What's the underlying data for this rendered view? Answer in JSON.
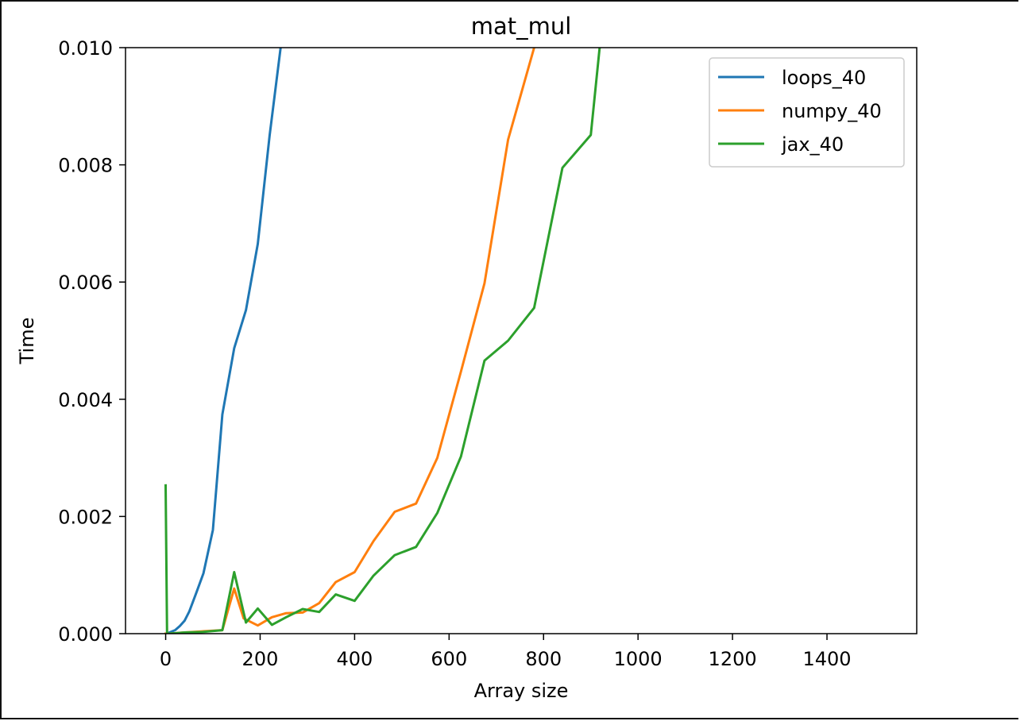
{
  "chart_data": {
    "type": "line",
    "title": "mat_mul",
    "xlabel": "Array size",
    "ylabel": "Time",
    "xlim": [
      -85,
      1590
    ],
    "ylim": [
      0,
      0.01
    ],
    "xticks": [
      0,
      200,
      400,
      600,
      800,
      1000,
      1200,
      1400
    ],
    "xtick_labels": [
      "0",
      "200",
      "400",
      "600",
      "800",
      "1000",
      "1200",
      "1400"
    ],
    "yticks": [
      0,
      0.002,
      0.004,
      0.006,
      0.008,
      0.01
    ],
    "ytick_labels": [
      "0.000",
      "0.002",
      "0.004",
      "0.006",
      "0.008",
      "0.010"
    ],
    "grid": false,
    "legend_position": "top-right",
    "series": [
      {
        "name": "loops_40",
        "color": "#1f77b4",
        "x": [
          0,
          8,
          20,
          30,
          40,
          50,
          65,
          80,
          100,
          120,
          145,
          170,
          195,
          220,
          245,
          250
        ],
        "y": [
          0.0,
          2e-05,
          6e-05,
          0.00013,
          0.00022,
          0.00038,
          0.0007,
          0.00103,
          0.00177,
          0.00374,
          0.00487,
          0.00552,
          0.00665,
          0.0085,
          0.0101,
          0.0104
        ]
      },
      {
        "name": "numpy_40",
        "color": "#ff7f0e",
        "x": [
          0,
          8,
          40,
          80,
          120,
          145,
          165,
          195,
          225,
          255,
          290,
          325,
          360,
          400,
          440,
          485,
          530,
          575,
          625,
          675,
          725,
          780,
          800
        ],
        "y": [
          0.0,
          0.0,
          2e-05,
          4e-05,
          6e-05,
          0.00077,
          0.00026,
          0.00014,
          0.00028,
          0.00035,
          0.00036,
          0.00052,
          0.00088,
          0.00105,
          0.00158,
          0.00208,
          0.00222,
          0.003,
          0.00447,
          0.00598,
          0.00843,
          0.01,
          0.0104
        ]
      },
      {
        "name": "jax_40",
        "color": "#2ca02c",
        "x": [
          0,
          3,
          8,
          40,
          80,
          120,
          145,
          170,
          195,
          225,
          255,
          290,
          325,
          360,
          400,
          440,
          485,
          530,
          575,
          625,
          675,
          725,
          780,
          840,
          900,
          920,
          930
        ],
        "y": [
          0.00253,
          0.0,
          0.0,
          2e-05,
          3e-05,
          6e-05,
          0.00105,
          0.00019,
          0.00043,
          0.00015,
          0.00028,
          0.00042,
          0.00037,
          0.00067,
          0.00056,
          0.00099,
          0.00134,
          0.00148,
          0.00206,
          0.00302,
          0.00466,
          0.005,
          0.00556,
          0.00795,
          0.00851,
          0.0101,
          0.0106
        ]
      }
    ]
  }
}
